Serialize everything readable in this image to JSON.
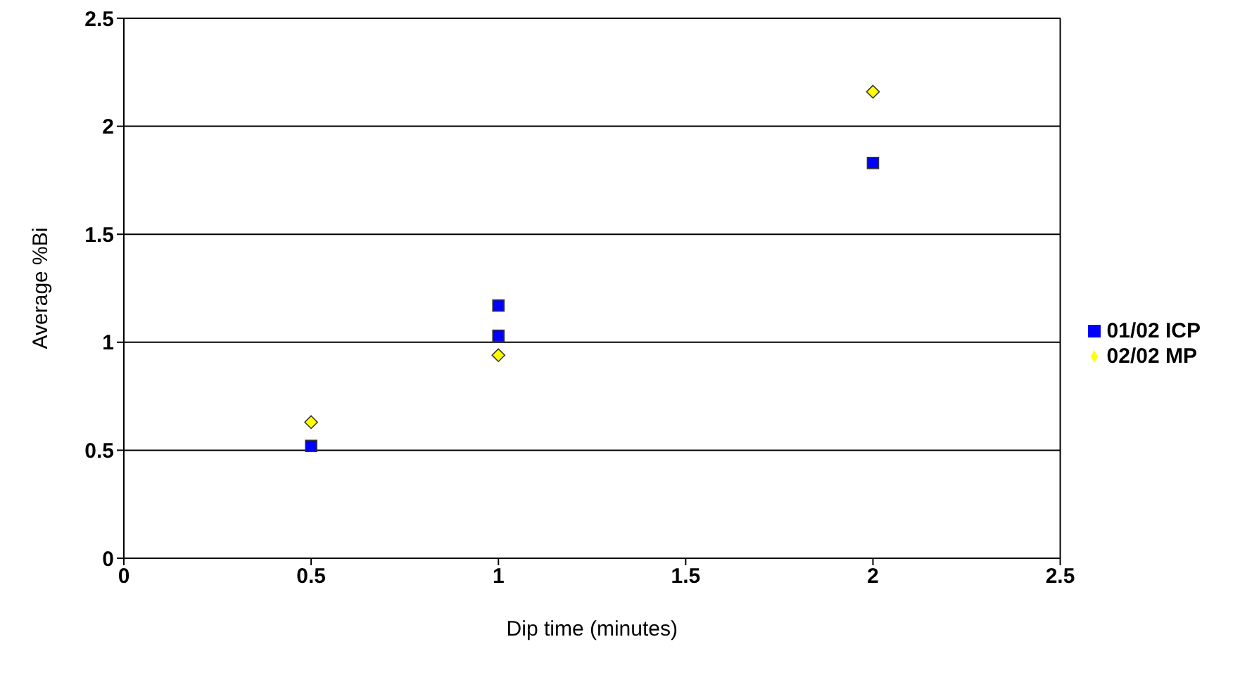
{
  "chart_data": {
    "type": "scatter",
    "xlabel": "Dip time (minutes)",
    "ylabel": "Average %Bi",
    "series": [
      {
        "name": "01/02 ICP",
        "color": "#0000ff",
        "marker": "square",
        "x": [
          0.5,
          1,
          1,
          2
        ],
        "values": [
          0.52,
          1.17,
          1.03,
          1.83
        ]
      },
      {
        "name": "02/02 MP",
        "color": "#ffff00",
        "marker": "diamond",
        "x": [
          0.5,
          1,
          2
        ],
        "values": [
          0.63,
          0.94,
          2.16
        ]
      }
    ],
    "xlim": [
      0,
      2.5
    ],
    "xticks": [
      0,
      0.5,
      1,
      1.5,
      2,
      2.5
    ],
    "ylim": [
      0,
      2.5
    ],
    "yticks": [
      0,
      0.5,
      1,
      1.5,
      2,
      2.5
    ],
    "grid": "y",
    "legend": "right"
  }
}
